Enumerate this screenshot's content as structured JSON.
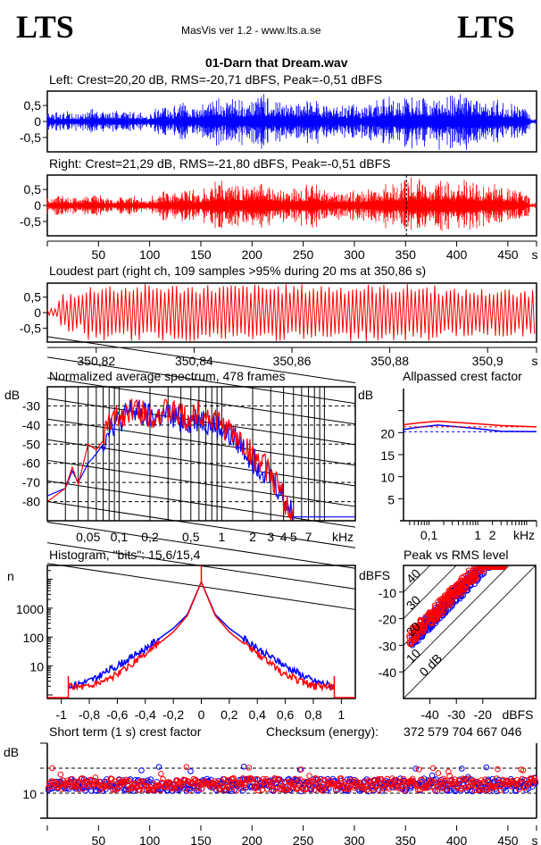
{
  "header": {
    "logo_left": "LTS",
    "logo_right": "LTS",
    "app_title": "MasVis ver 1.2 - www.lts.a.se",
    "file_name": "01-Darn that Dream.wav"
  },
  "colors": {
    "left": "#0000ff",
    "right": "#ff0000",
    "axis": "#000000"
  },
  "chart_data": [
    {
      "id": "left-waveform",
      "type": "line",
      "title": "Left: Crest=20,20 dB, RMS=-20,71 dBFS, Peak=-0,51 dBFS",
      "series": [
        {
          "name": "Left",
          "color": "#0000ff"
        }
      ],
      "ylim": [
        -0.95,
        0.95
      ],
      "xlim": [
        0,
        478
      ],
      "yticks": [
        {
          "v": 0.5,
          "label": "0,5"
        },
        {
          "v": 0,
          "label": "0"
        },
        {
          "v": -0.5,
          "label": "-0,5"
        }
      ],
      "envelope": [
        0.3,
        0.3,
        0.35,
        0.3,
        0.32,
        0.3,
        0.4,
        0.35,
        0.3,
        0.35,
        0.4,
        0.3,
        0.35,
        0.3,
        0.25,
        0.4,
        0.55,
        0.45,
        0.5,
        0.6,
        0.55,
        0.5,
        0.6,
        0.7,
        0.85,
        0.6,
        0.7,
        0.75,
        0.65,
        0.8,
        0.9,
        0.8,
        0.7,
        0.65,
        0.55,
        0.6,
        0.7,
        0.8,
        0.75,
        0.6,
        0.45,
        0.5,
        0.55,
        0.6,
        0.5,
        0.55,
        0.6,
        0.7,
        0.8,
        0.75,
        0.7,
        0.85,
        0.9,
        0.8,
        0.75,
        0.8,
        0.9,
        0.85,
        0.75,
        0.9,
        0.85,
        0.8,
        0.7,
        0.75,
        0.7,
        0.65,
        0.6,
        0.55,
        0.4,
        0.1
      ]
    },
    {
      "id": "right-waveform",
      "type": "line",
      "title": "Right: Crest=21,29 dB, RMS=-21,80 dBFS, Peak=-0,51 dBFS",
      "series": [
        {
          "name": "Right",
          "color": "#ff0000"
        }
      ],
      "ylim": [
        -0.95,
        0.95
      ],
      "xlim": [
        0,
        478
      ],
      "xlabel": "s",
      "xticks": [
        50,
        100,
        150,
        200,
        250,
        300,
        350,
        400,
        450
      ],
      "yticks": [
        {
          "v": 0.5,
          "label": "0,5"
        },
        {
          "v": 0,
          "label": "0"
        },
        {
          "v": -0.5,
          "label": "-0,5"
        }
      ],
      "marker_x": 350.86,
      "envelope": [
        0.3,
        0.3,
        0.35,
        0.3,
        0.3,
        0.3,
        0.35,
        0.35,
        0.3,
        0.3,
        0.35,
        0.3,
        0.3,
        0.3,
        0.25,
        0.35,
        0.5,
        0.45,
        0.45,
        0.55,
        0.5,
        0.45,
        0.55,
        0.7,
        0.85,
        0.6,
        0.7,
        0.7,
        0.6,
        0.8,
        0.9,
        0.8,
        0.65,
        0.6,
        0.5,
        0.55,
        0.65,
        0.75,
        0.7,
        0.55,
        0.4,
        0.45,
        0.5,
        0.55,
        0.45,
        0.5,
        0.55,
        0.65,
        0.75,
        0.7,
        0.7,
        0.8,
        0.9,
        0.95,
        0.75,
        0.75,
        0.85,
        0.8,
        0.7,
        0.85,
        0.8,
        0.75,
        0.65,
        0.7,
        0.65,
        0.6,
        0.55,
        0.5,
        0.35,
        0.1
      ]
    },
    {
      "id": "loudest-part",
      "type": "line",
      "title": "Loudest part (right ch, 109 samples >95% during 20 ms at 350,86 s)",
      "series": [
        {
          "name": "Right",
          "color": "#ff0000"
        }
      ],
      "xlim": [
        350.81,
        350.91
      ],
      "ylim": [
        -0.95,
        0.95
      ],
      "xlabel": "s",
      "xticks": [
        {
          "v": 350.82,
          "label": "350,82"
        },
        {
          "v": 350.84,
          "label": "350,84"
        },
        {
          "v": 350.86,
          "label": "350,86"
        },
        {
          "v": 350.88,
          "label": "350,88"
        },
        {
          "v": 350.9,
          "label": "350,9"
        }
      ],
      "yticks": [
        {
          "v": 0.5,
          "label": "0,5"
        },
        {
          "v": 0,
          "label": "0"
        },
        {
          "v": -0.5,
          "label": "-0,5"
        }
      ],
      "cycles": 125
    },
    {
      "id": "spectrum",
      "type": "line",
      "title": "Normalized average spectrum, 478 frames",
      "ylabel": "dB",
      "xlabel": "kHz",
      "xscale": "log",
      "xlim": [
        0.02,
        20
      ],
      "ylim": [
        -90,
        -20
      ],
      "yticks": [
        -30,
        -40,
        -50,
        -60,
        -70,
        -80
      ],
      "xticks": [
        {
          "v": 0.05,
          "label": "0,05"
        },
        {
          "v": 0.1,
          "label": "0,1"
        },
        {
          "v": 0.2,
          "label": "0,2"
        },
        {
          "v": 0.5,
          "label": "0,5"
        },
        {
          "v": 1,
          "label": "1"
        },
        {
          "v": 2,
          "label": "2"
        },
        {
          "v": 3,
          "label": "3"
        },
        {
          "v": 4,
          "label": "4"
        },
        {
          "v": 5,
          "label": "5"
        },
        {
          "v": 7,
          "label": "7"
        }
      ],
      "series": [
        {
          "name": "Left",
          "color": "#0000ff",
          "points": [
            [
              0.02,
              -77
            ],
            [
              0.03,
              -73
            ],
            [
              0.035,
              -64
            ],
            [
              0.04,
              -70
            ],
            [
              0.05,
              -60
            ],
            [
              0.06,
              -55
            ],
            [
              0.07,
              -50
            ],
            [
              0.08,
              -40
            ],
            [
              0.1,
              -38
            ],
            [
              0.13,
              -33
            ],
            [
              0.2,
              -36
            ],
            [
              0.3,
              -35
            ],
            [
              0.5,
              -38
            ],
            [
              0.6,
              -36
            ],
            [
              1,
              -42
            ],
            [
              1.5,
              -50
            ],
            [
              2,
              -58
            ],
            [
              3,
              -66
            ],
            [
              4,
              -78
            ],
            [
              5,
              -88
            ],
            [
              20,
              -88
            ]
          ]
        },
        {
          "name": "Right",
          "color": "#ff0000",
          "points": [
            [
              0.02,
              -80
            ],
            [
              0.03,
              -73
            ],
            [
              0.035,
              -62
            ],
            [
              0.04,
              -71
            ],
            [
              0.05,
              -50
            ],
            [
              0.06,
              -53
            ],
            [
              0.07,
              -48
            ],
            [
              0.08,
              -38
            ],
            [
              0.1,
              -36
            ],
            [
              0.13,
              -31
            ],
            [
              0.2,
              -35
            ],
            [
              0.3,
              -33
            ],
            [
              0.5,
              -37
            ],
            [
              0.6,
              -33
            ],
            [
              1,
              -40
            ],
            [
              1.5,
              -48
            ],
            [
              2,
              -56
            ],
            [
              3,
              -65
            ],
            [
              4,
              -78
            ],
            [
              5,
              -90
            ],
            [
              20,
              -90
            ]
          ]
        }
      ]
    },
    {
      "id": "allpassed-crest",
      "type": "line",
      "title": "Allpassed crest factor",
      "ylabel": "dB",
      "xlabel": "kHz",
      "xscale": "log",
      "xlim": [
        0.03,
        16
      ],
      "ylim": [
        0,
        30
      ],
      "yticks": [
        5,
        10,
        15,
        20
      ],
      "xticks": [
        {
          "v": 0.1,
          "label": "0,1"
        },
        {
          "v": 1,
          "label": "1"
        },
        {
          "v": 2,
          "label": "2"
        }
      ],
      "series": [
        {
          "name": "Left",
          "color": "#0000ff",
          "points": [
            [
              0.03,
              20.7
            ],
            [
              0.06,
              21.2
            ],
            [
              0.15,
              21.7
            ],
            [
              0.4,
              21.3
            ],
            [
              1,
              20.9
            ],
            [
              3,
              20.3
            ],
            [
              16,
              20.2
            ]
          ],
          "reference": 20.2
        },
        {
          "name": "Right",
          "color": "#ff0000",
          "points": [
            [
              0.03,
              21.8
            ],
            [
              0.06,
              22.2
            ],
            [
              0.15,
              22.6
            ],
            [
              0.4,
              22.3
            ],
            [
              1,
              22.0
            ],
            [
              3,
              21.6
            ],
            [
              16,
              21.3
            ]
          ],
          "reference": 21.3
        }
      ]
    },
    {
      "id": "histogram",
      "type": "line",
      "title": "Histogram, \"bits\": 15,6/15,4",
      "ylabel": "n",
      "yscale": "log",
      "xlim": [
        -1.1,
        1.1
      ],
      "ylim": [
        1,
        30000
      ],
      "yticks": [
        {
          "v": 10,
          "label": "10"
        },
        {
          "v": 100,
          "label": "100"
        },
        {
          "v": 1000,
          "label": "1000"
        }
      ],
      "xticks": [
        {
          "v": -1,
          "label": "-1"
        },
        {
          "v": -0.8,
          "label": "-0,8"
        },
        {
          "v": -0.6,
          "label": "-0,6"
        },
        {
          "v": -0.4,
          "label": "-0,4"
        },
        {
          "v": -0.2,
          "label": "-0,2"
        },
        {
          "v": 0,
          "label": "0"
        },
        {
          "v": 0.2,
          "label": "0,2"
        },
        {
          "v": 0.4,
          "label": "0,4"
        },
        {
          "v": 0.6,
          "label": "0,6"
        },
        {
          "v": 0.8,
          "label": "0,8"
        },
        {
          "v": 1,
          "label": "1"
        }
      ],
      "series": [
        {
          "name": "Left",
          "color": "#0000ff",
          "points": [
            [
              -0.95,
              2
            ],
            [
              -0.8,
              3
            ],
            [
              -0.6,
              10
            ],
            [
              -0.4,
              40
            ],
            [
              -0.2,
              200
            ],
            [
              -0.1,
              600
            ],
            [
              0,
              8000
            ],
            [
              0.1,
              600
            ],
            [
              0.2,
              200
            ],
            [
              0.4,
              40
            ],
            [
              0.6,
              10
            ],
            [
              0.8,
              3
            ],
            [
              0.95,
              2
            ]
          ]
        },
        {
          "name": "Right",
          "color": "#ff0000",
          "points": [
            [
              -0.95,
              2
            ],
            [
              -0.8,
              2
            ],
            [
              -0.6,
              5
            ],
            [
              -0.4,
              25
            ],
            [
              -0.2,
              150
            ],
            [
              -0.1,
              550
            ],
            [
              0,
              8000
            ],
            [
              0.1,
              550
            ],
            [
              0.2,
              150
            ],
            [
              0.4,
              25
            ],
            [
              0.6,
              5
            ],
            [
              0.8,
              2
            ],
            [
              0.95,
              2
            ]
          ]
        }
      ],
      "center_spike": 30000
    },
    {
      "id": "peak-vs-rms",
      "type": "scatter",
      "title": "Peak vs RMS level",
      "ylabel": "dBFS",
      "xlabel": "dBFS",
      "xlim": [
        -50,
        0
      ],
      "ylim": [
        -50,
        0
      ],
      "xticks": [
        -40,
        -30,
        -20
      ],
      "yticks": [
        -10,
        -20,
        -30,
        -40
      ],
      "crest_lines": [
        {
          "v": 0,
          "label": "0 dB"
        },
        {
          "v": 10,
          "label": "10"
        },
        {
          "v": 20,
          "label": "20"
        },
        {
          "v": 30,
          "label": "30"
        },
        {
          "v": 40,
          "label": "40"
        }
      ],
      "series": [
        {
          "name": "Left",
          "color": "#0000ff",
          "crest_mean": 20.2,
          "rms_range": [
            -47,
            -13
          ]
        },
        {
          "name": "Right",
          "color": "#ff0000",
          "crest_mean": 21.3,
          "rms_range": [
            -48,
            -12
          ]
        }
      ]
    },
    {
      "id": "short-term-crest",
      "type": "scatter",
      "title": "Short term (1 s) crest factor",
      "ylabel": "dB",
      "xlabel": "s",
      "xlim": [
        0,
        478
      ],
      "ylim": [
        0,
        30
      ],
      "yticks": [
        {
          "v": 10,
          "label": "10"
        }
      ],
      "dashed_levels": [
        10,
        20
      ],
      "xticks": [
        50,
        100,
        150,
        200,
        250,
        300,
        350,
        400,
        450
      ],
      "series": [
        {
          "name": "Left",
          "color": "#0000ff",
          "mean": 13.2
        },
        {
          "name": "Right",
          "color": "#ff0000",
          "mean": 13.5
        }
      ]
    }
  ],
  "checksum": {
    "label": "Checksum (energy):",
    "value": "372 579 704 667 046"
  }
}
